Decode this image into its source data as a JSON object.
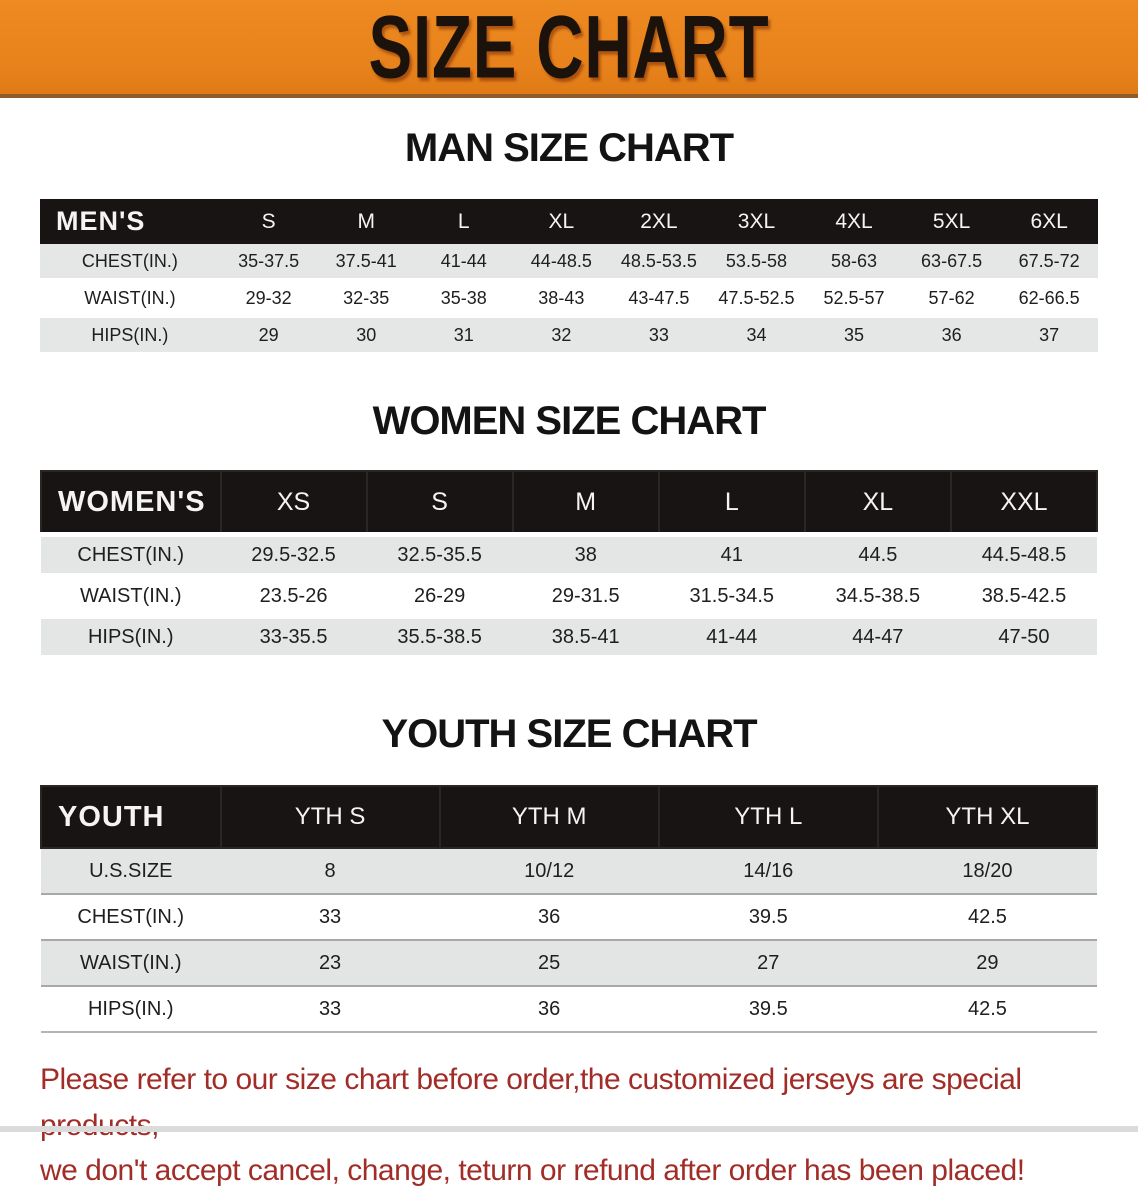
{
  "banner": {
    "title": "SIZE CHART",
    "bg_color": "#E8821C",
    "text_color": "#1A120B"
  },
  "sections": [
    {
      "id": "men",
      "heading": "MAN SIZE CHART",
      "table": {
        "header": [
          "MEN'S",
          "S",
          "M",
          "L",
          "XL",
          "2XL",
          "3XL",
          "4XL",
          "5XL",
          "6XL"
        ],
        "rows": [
          [
            "CHEST(IN.)",
            "35-37.5",
            "37.5-41",
            "41-44",
            "44-48.5",
            "48.5-53.5",
            "53.5-58",
            "58-63",
            "63-67.5",
            "67.5-72"
          ],
          [
            "WAIST(IN.)",
            "29-32",
            "32-35",
            "35-38",
            "38-43",
            "43-47.5",
            "47.5-52.5",
            "52.5-57",
            "57-62",
            "62-66.5"
          ],
          [
            "HIPS(IN.)",
            "29",
            "30",
            "31",
            "32",
            "33",
            "34",
            "35",
            "36",
            "37"
          ]
        ]
      }
    },
    {
      "id": "women",
      "heading": "WOMEN SIZE CHART",
      "table": {
        "header": [
          "WOMEN'S",
          "XS",
          "S",
          "M",
          "L",
          "XL",
          "XXL"
        ],
        "rows": [
          [
            "CHEST(IN.)",
            "29.5-32.5",
            "32.5-35.5",
            "38",
            "41",
            "44.5",
            "44.5-48.5"
          ],
          [
            "WAIST(IN.)",
            "23.5-26",
            "26-29",
            "29-31.5",
            "31.5-34.5",
            "34.5-38.5",
            "38.5-42.5"
          ],
          [
            "HIPS(IN.)",
            "33-35.5",
            "35.5-38.5",
            "38.5-41",
            "41-44",
            "44-47",
            "47-50"
          ]
        ]
      }
    },
    {
      "id": "youth",
      "heading": "YOUTH SIZE CHART",
      "table": {
        "header": [
          "YOUTH",
          "YTH S",
          "YTH M",
          "YTH L",
          "YTH XL"
        ],
        "rows": [
          [
            "U.S.SIZE",
            "8",
            "10/12",
            "14/16",
            "18/20"
          ],
          [
            "CHEST(IN.)",
            "33",
            "36",
            "39.5",
            "42.5"
          ],
          [
            "WAIST(IN.)",
            "23",
            "25",
            "27",
            "29"
          ],
          [
            "HIPS(IN.)",
            "33",
            "36",
            "39.5",
            "42.5"
          ]
        ]
      }
    }
  ],
  "footer": {
    "line1": "Please refer to our size chart before order,the customized jerseys are special products,",
    "line2": "we don't accept cancel, change, teturn or refund after order has been placed!",
    "text_color": "#A22D28"
  },
  "colors": {
    "table_header_bg": "#171413",
    "row_gray": "#E5E6E6",
    "row_white": "#FFFFFF"
  }
}
